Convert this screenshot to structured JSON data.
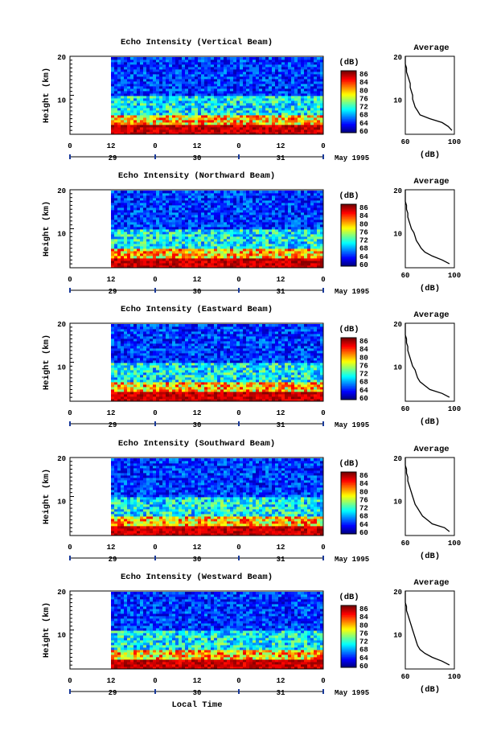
{
  "chart_data": [
    {
      "type": "heatmap",
      "title": "Echo Intensity (Vertical Beam)",
      "ylabel": "Height (km)",
      "yticks": [
        "20",
        "10"
      ],
      "ylim": [
        0,
        20
      ],
      "xticks_hours": [
        "0",
        "12",
        "0",
        "12",
        "0",
        "12",
        "0"
      ],
      "xticks_days": [
        "29",
        "30",
        "31"
      ],
      "month": "May 1995",
      "colorbar": {
        "unit": "(dB)",
        "ticks": [
          "86",
          "84",
          "80",
          "76",
          "72",
          "68",
          "64",
          "60"
        ],
        "range": [
          60,
          88
        ]
      },
      "average": {
        "title": "Average",
        "xlabel": "(dB)",
        "xticks": [
          "60",
          "100"
        ],
        "yticks": [
          "20",
          "10"
        ],
        "xlim": [
          60,
          100
        ],
        "ylim": [
          0,
          20
        ],
        "profile": [
          [
            98,
            1
          ],
          [
            95,
            2
          ],
          [
            90,
            3
          ],
          [
            80,
            4
          ],
          [
            72,
            5
          ],
          [
            70,
            6
          ],
          [
            68,
            7
          ],
          [
            67,
            8
          ],
          [
            66,
            9
          ],
          [
            66,
            10
          ],
          [
            65,
            11
          ],
          [
            64,
            12
          ],
          [
            64,
            13
          ],
          [
            63,
            14
          ],
          [
            62,
            15
          ],
          [
            61,
            16
          ],
          [
            61,
            17
          ],
          [
            60,
            18
          ],
          [
            60,
            19
          ],
          [
            60,
            20
          ]
        ]
      }
    },
    {
      "type": "heatmap",
      "title": "Echo Intensity (Northward Beam)",
      "ylabel": "Height (km)",
      "yticks": [
        "20",
        "10"
      ],
      "ylim": [
        0,
        20
      ],
      "xticks_hours": [
        "0",
        "12",
        "0",
        "12",
        "0",
        "12",
        "0"
      ],
      "xticks_days": [
        "29",
        "30",
        "31"
      ],
      "month": "May 1995",
      "colorbar": {
        "unit": "(dB)",
        "ticks": [
          "86",
          "84",
          "80",
          "76",
          "72",
          "68",
          "64",
          "60"
        ],
        "range": [
          60,
          88
        ]
      },
      "average": {
        "title": "Average",
        "xlabel": "(dB)",
        "xticks": [
          "60",
          "100"
        ],
        "yticks": [
          "20",
          "10"
        ],
        "xlim": [
          60,
          100
        ],
        "ylim": [
          0,
          20
        ],
        "profile": [
          [
            96,
            1
          ],
          [
            90,
            2
          ],
          [
            82,
            3
          ],
          [
            76,
            4
          ],
          [
            73,
            5
          ],
          [
            71,
            6
          ],
          [
            69,
            7
          ],
          [
            68,
            8
          ],
          [
            67,
            9
          ],
          [
            65,
            10
          ],
          [
            64,
            11
          ],
          [
            63,
            12
          ],
          [
            62,
            13
          ],
          [
            62,
            14
          ],
          [
            61,
            15
          ],
          [
            61,
            16
          ],
          [
            60,
            17
          ],
          [
            60,
            18
          ],
          [
            60,
            19
          ],
          [
            60,
            20
          ]
        ]
      }
    },
    {
      "type": "heatmap",
      "title": "Echo Intensity (Eastward Beam)",
      "ylabel": "Height (km)",
      "yticks": [
        "20",
        "10"
      ],
      "ylim": [
        0,
        20
      ],
      "xticks_hours": [
        "0",
        "12",
        "0",
        "12",
        "0",
        "12",
        "0"
      ],
      "xticks_days": [
        "29",
        "30",
        "31"
      ],
      "month": "May 1995",
      "colorbar": {
        "unit": "(dB)",
        "ticks": [
          "86",
          "84",
          "80",
          "76",
          "72",
          "68",
          "64",
          "60"
        ],
        "range": [
          60,
          88
        ]
      },
      "average": {
        "title": "Average",
        "xlabel": "(dB)",
        "xticks": [
          "60",
          "100"
        ],
        "yticks": [
          "20",
          "10"
        ],
        "xlim": [
          60,
          100
        ],
        "ylim": [
          0,
          20
        ],
        "profile": [
          [
            96,
            1
          ],
          [
            90,
            2
          ],
          [
            80,
            3
          ],
          [
            76,
            4
          ],
          [
            72,
            5
          ],
          [
            70,
            6
          ],
          [
            69,
            7
          ],
          [
            68,
            8
          ],
          [
            66,
            9
          ],
          [
            65,
            10
          ],
          [
            64,
            11
          ],
          [
            63,
            12
          ],
          [
            62,
            13
          ],
          [
            62,
            14
          ],
          [
            61,
            15
          ],
          [
            61,
            16
          ],
          [
            60,
            17
          ],
          [
            60,
            18
          ],
          [
            60,
            19
          ],
          [
            60,
            20
          ]
        ]
      }
    },
    {
      "type": "heatmap",
      "title": "Echo Intensity (Southward Beam)",
      "ylabel": "Height (km)",
      "yticks": [
        "20",
        "10"
      ],
      "ylim": [
        0,
        20
      ],
      "xticks_hours": [
        "0",
        "12",
        "0",
        "12",
        "0",
        "12",
        "0"
      ],
      "xticks_days": [
        "29",
        "30",
        "31"
      ],
      "month": "May 1995",
      "colorbar": {
        "unit": "(dB)",
        "ticks": [
          "86",
          "84",
          "80",
          "76",
          "72",
          "68",
          "64",
          "60"
        ],
        "range": [
          60,
          88
        ]
      },
      "average": {
        "title": "Average",
        "xlabel": "(dB)",
        "xticks": [
          "60",
          "100"
        ],
        "yticks": [
          "20",
          "10"
        ],
        "xlim": [
          60,
          100
        ],
        "ylim": [
          0,
          20
        ],
        "profile": [
          [
            96,
            1
          ],
          [
            92,
            2
          ],
          [
            82,
            3
          ],
          [
            78,
            4
          ],
          [
            74,
            5
          ],
          [
            72,
            6
          ],
          [
            70,
            7
          ],
          [
            68,
            8
          ],
          [
            67,
            9
          ],
          [
            66,
            10
          ],
          [
            65,
            11
          ],
          [
            64,
            12
          ],
          [
            63,
            13
          ],
          [
            62,
            14
          ],
          [
            62,
            15
          ],
          [
            61,
            16
          ],
          [
            61,
            17
          ],
          [
            60,
            18
          ],
          [
            60,
            19
          ],
          [
            60,
            20
          ]
        ]
      }
    },
    {
      "type": "heatmap",
      "title": "Echo Intensity (Westward Beam)",
      "ylabel": "Height (km)",
      "yticks": [
        "20",
        "10"
      ],
      "ylim": [
        0,
        20
      ],
      "xticks_hours": [
        "0",
        "12",
        "0",
        "12",
        "0",
        "12",
        "0"
      ],
      "xticks_days": [
        "29",
        "30",
        "31"
      ],
      "month": "May 1995",
      "xlabel": "Local Time",
      "colorbar": {
        "unit": "(dB)",
        "ticks": [
          "86",
          "84",
          "80",
          "76",
          "72",
          "68",
          "64",
          "60"
        ],
        "range": [
          60,
          88
        ]
      },
      "average": {
        "title": "Average",
        "xlabel": "(dB)",
        "xticks": [
          "60",
          "100"
        ],
        "yticks": [
          "20",
          "10"
        ],
        "xlim": [
          60,
          100
        ],
        "ylim": [
          0,
          20
        ],
        "profile": [
          [
            96,
            1
          ],
          [
            90,
            2
          ],
          [
            82,
            3
          ],
          [
            76,
            4
          ],
          [
            72,
            5
          ],
          [
            70,
            6
          ],
          [
            69,
            7
          ],
          [
            68,
            8
          ],
          [
            67,
            9
          ],
          [
            66,
            10
          ],
          [
            65,
            11
          ],
          [
            64,
            12
          ],
          [
            63,
            13
          ],
          [
            62,
            14
          ],
          [
            61,
            15
          ],
          [
            61,
            16
          ],
          [
            60,
            17
          ],
          [
            60,
            18
          ],
          [
            60,
            19
          ],
          [
            60,
            20
          ]
        ]
      }
    }
  ]
}
